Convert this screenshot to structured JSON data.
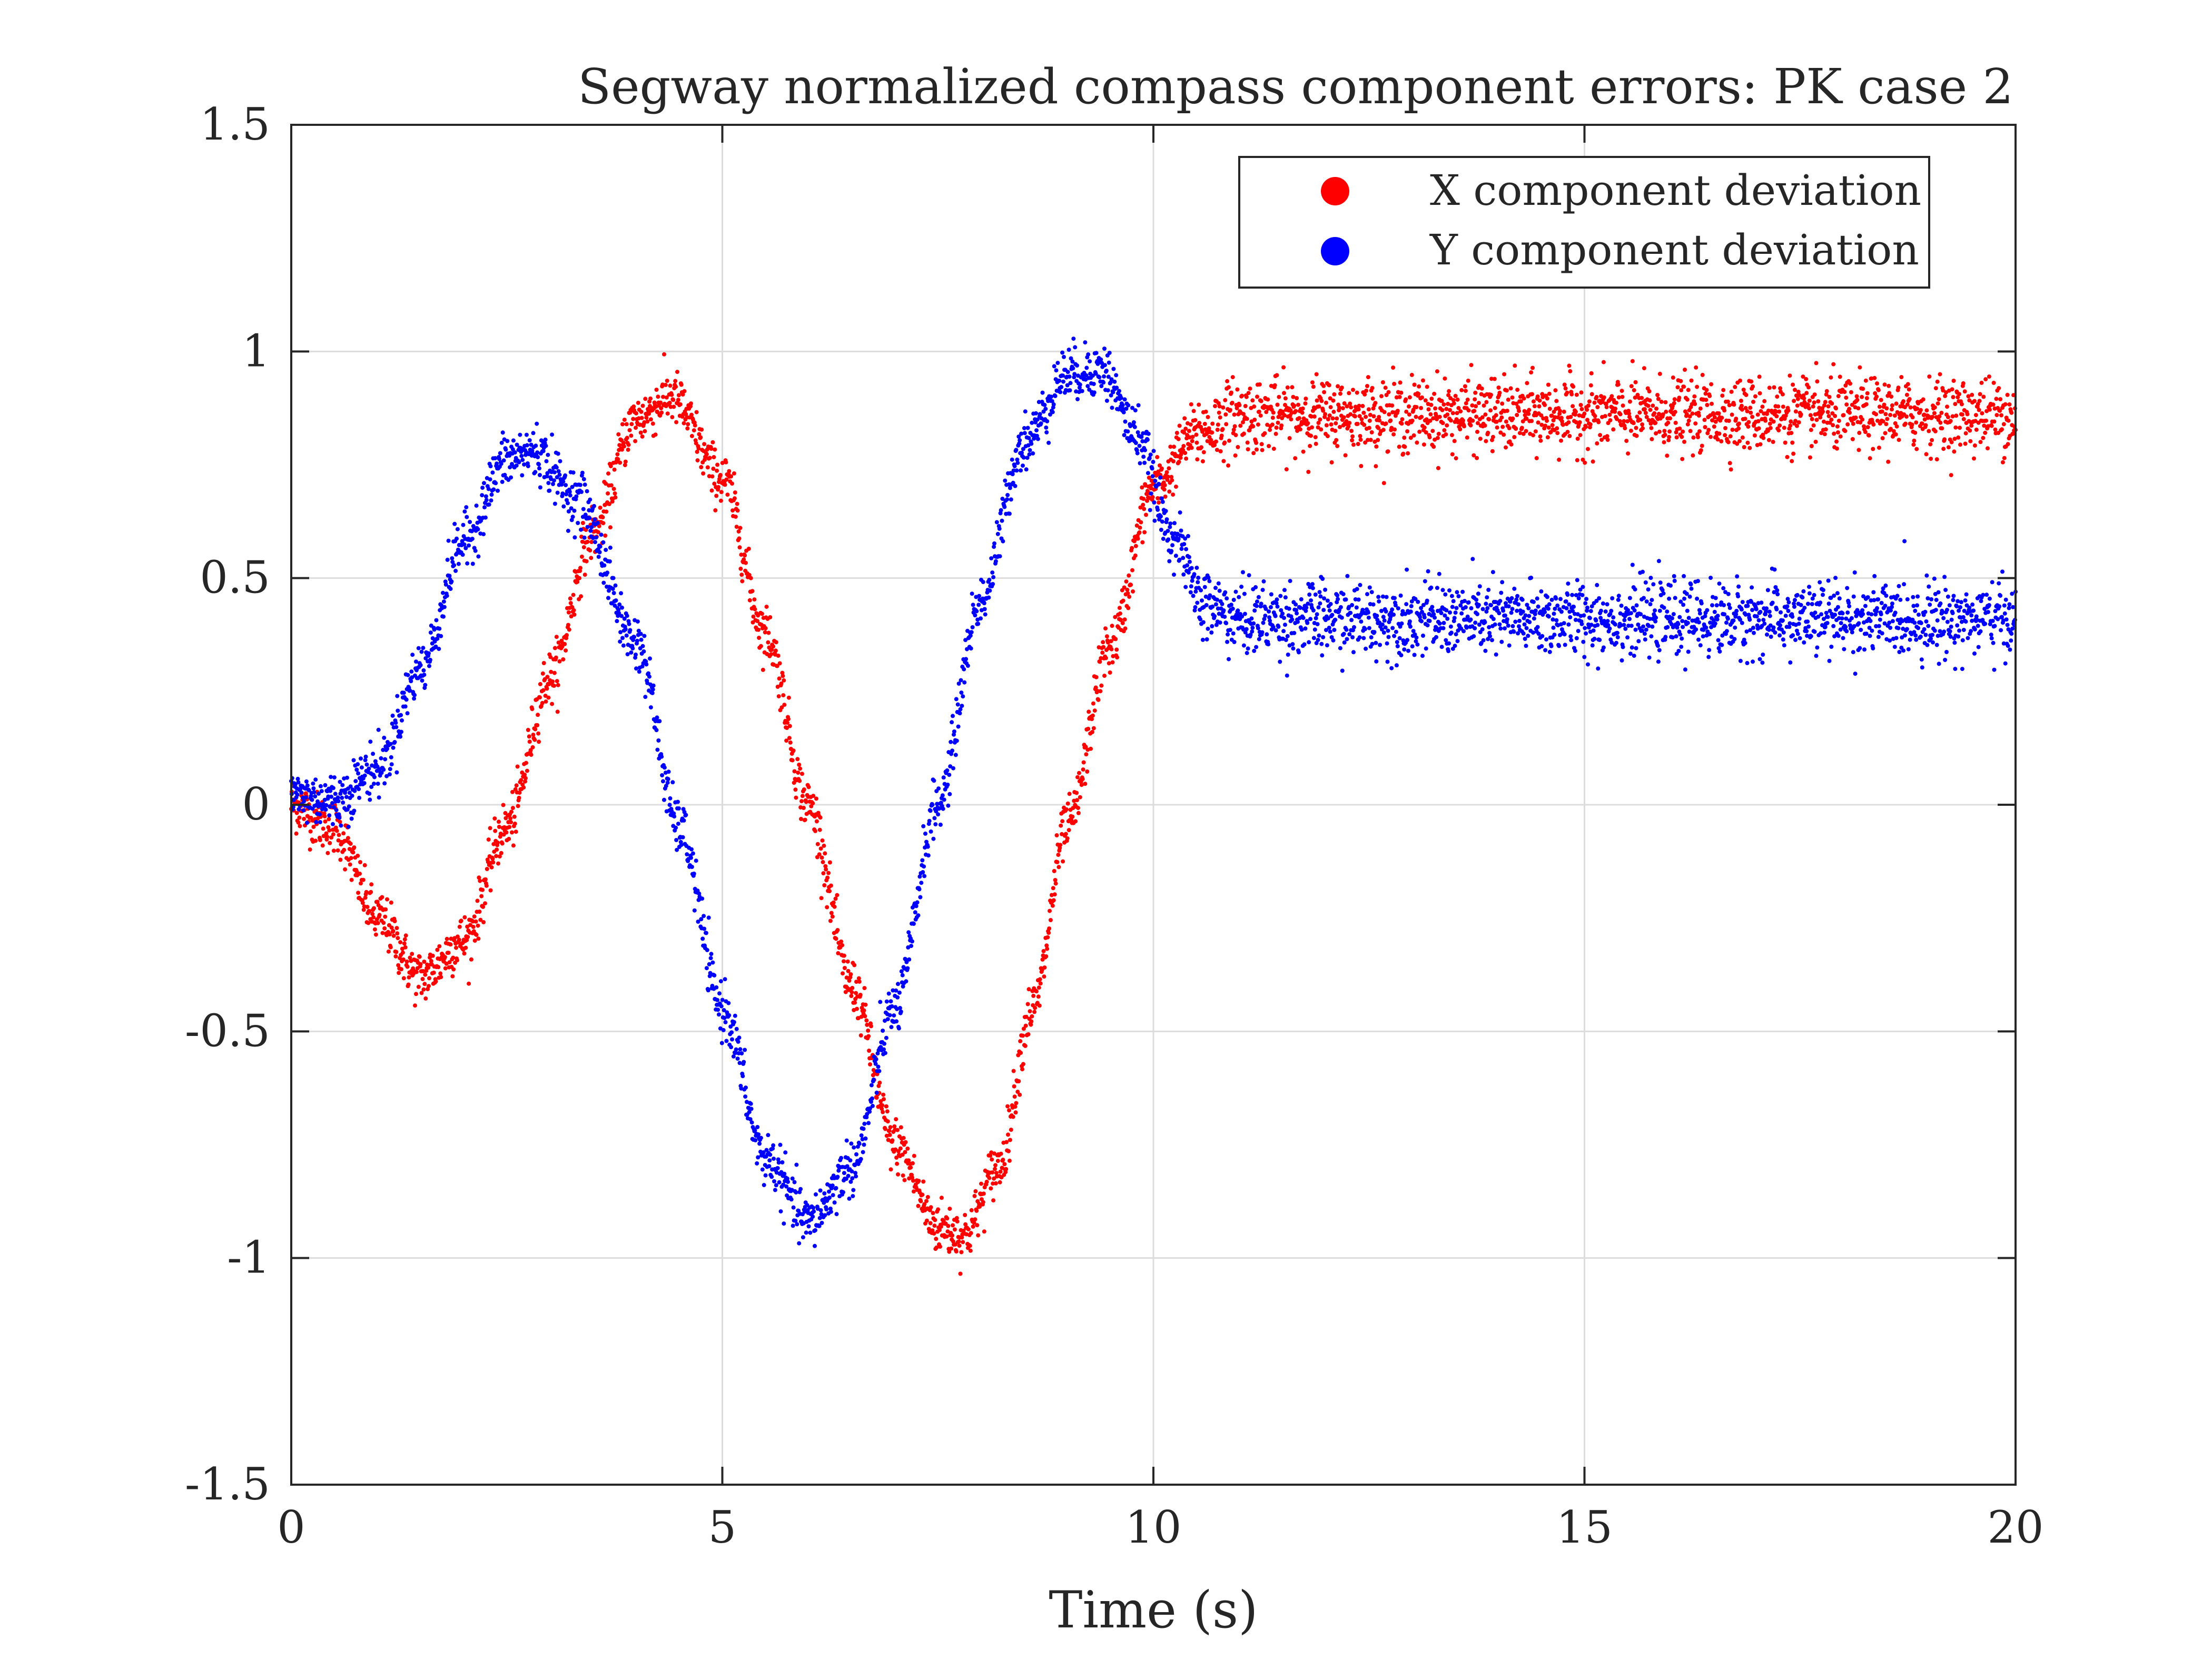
{
  "chart_data": {
    "type": "scatter",
    "title": "Segway normalized compass component errors: PK case 2",
    "xlabel": "Time (s)",
    "ylabel": "",
    "xlim": [
      0,
      20
    ],
    "ylim": [
      -1.5,
      1.5
    ],
    "xticks": [
      0,
      5,
      10,
      15,
      20
    ],
    "xtick_labels": [
      "0",
      "5",
      "10",
      "15",
      "20"
    ],
    "yticks": [
      -1.5,
      -1,
      -0.5,
      0,
      0.5,
      1,
      1.5
    ],
    "ytick_labels": [
      "-1.5",
      "-1",
      "-0.5",
      "0",
      "0.5",
      "1",
      "1.5"
    ],
    "grid": true,
    "legend_position": "top-right",
    "series": [
      {
        "name": "X component deviation",
        "color": "#ff0000",
        "points": [
          [
            0.0,
            0.0
          ],
          [
            0.5,
            -0.05
          ],
          [
            1.0,
            -0.25
          ],
          [
            1.5,
            -0.38
          ],
          [
            2.0,
            -0.3
          ],
          [
            2.5,
            -0.05
          ],
          [
            3.0,
            0.28
          ],
          [
            3.5,
            0.6
          ],
          [
            4.0,
            0.85
          ],
          [
            4.4,
            0.9
          ],
          [
            5.0,
            0.72
          ],
          [
            5.5,
            0.38
          ],
          [
            6.0,
            0.0
          ],
          [
            6.5,
            -0.4
          ],
          [
            7.0,
            -0.75
          ],
          [
            7.5,
            -0.93
          ],
          [
            7.8,
            -0.95
          ],
          [
            8.2,
            -0.8
          ],
          [
            8.6,
            -0.45
          ],
          [
            9.0,
            -0.05
          ],
          [
            9.5,
            0.35
          ],
          [
            10.0,
            0.7
          ],
          [
            10.5,
            0.82
          ],
          [
            11.0,
            0.86
          ],
          [
            12.0,
            0.86
          ],
          [
            14.0,
            0.86
          ],
          [
            16.0,
            0.86
          ],
          [
            18.0,
            0.86
          ],
          [
            20.0,
            0.86
          ]
        ]
      },
      {
        "name": "Y component deviation",
        "color": "#0000ff",
        "points": [
          [
            0.0,
            0.02
          ],
          [
            0.5,
            0.01
          ],
          [
            1.0,
            0.08
          ],
          [
            1.5,
            0.3
          ],
          [
            2.0,
            0.58
          ],
          [
            2.5,
            0.76
          ],
          [
            2.8,
            0.78
          ],
          [
            3.3,
            0.68
          ],
          [
            4.0,
            0.36
          ],
          [
            4.5,
            -0.05
          ],
          [
            5.0,
            -0.45
          ],
          [
            5.5,
            -0.78
          ],
          [
            6.0,
            -0.92
          ],
          [
            6.5,
            -0.8
          ],
          [
            7.0,
            -0.45
          ],
          [
            7.5,
            0.0
          ],
          [
            8.0,
            0.45
          ],
          [
            8.5,
            0.8
          ],
          [
            9.0,
            0.95
          ],
          [
            9.4,
            0.96
          ],
          [
            9.8,
            0.82
          ],
          [
            10.2,
            0.6
          ],
          [
            10.6,
            0.44
          ],
          [
            11.0,
            0.41
          ],
          [
            12.0,
            0.41
          ],
          [
            14.0,
            0.41
          ],
          [
            16.0,
            0.41
          ],
          [
            18.0,
            0.41
          ],
          [
            20.0,
            0.41
          ]
        ]
      }
    ]
  }
}
